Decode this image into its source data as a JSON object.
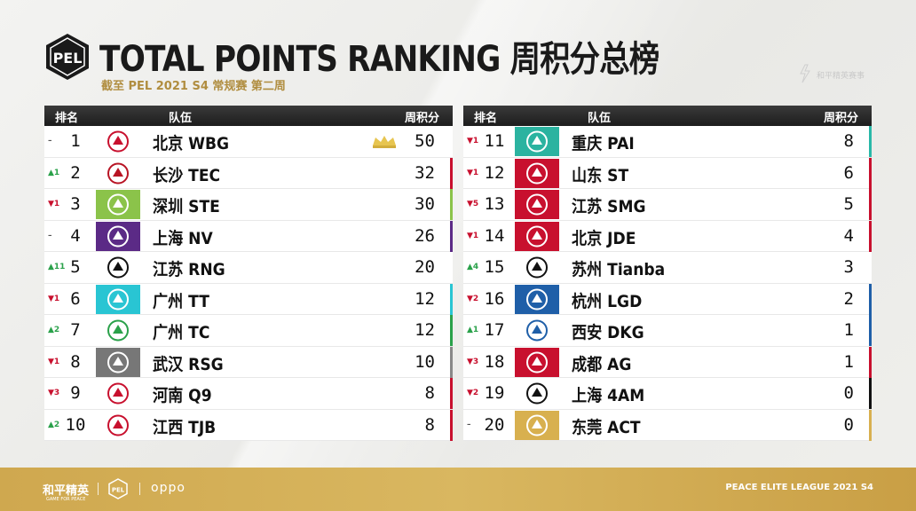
{
  "header": {
    "title": "TOTAL POINTS RANKING 周积分总榜",
    "subtitle": "截至 PEL 2021 S4 常规赛 第二周",
    "logo_text": "PEL"
  },
  "watermark": "和平精英赛事",
  "columns": {
    "rank": "排名",
    "team": "队伍",
    "points": "周积分"
  },
  "left_rows": [
    {
      "change": "–",
      "dir": "same",
      "rank": "1",
      "team": "北京 WBG",
      "points": "50",
      "stripe": "#ffffff",
      "logo_bg": "#ffffff",
      "logo_fg": "#c8102e",
      "icon": "weibo-logo-icon",
      "crown": true
    },
    {
      "change": "▲1",
      "dir": "up",
      "rank": "2",
      "team": "长沙 TEC",
      "points": "32",
      "stripe": "#c8102e",
      "logo_bg": "#ffffff",
      "logo_fg": "#b81424",
      "icon": "tec-logo-icon"
    },
    {
      "change": "▼1",
      "dir": "down",
      "rank": "3",
      "team": "深圳 STE",
      "points": "30",
      "stripe": "#8bc34a",
      "logo_bg": "#8bc34a",
      "logo_fg": "#ffffff",
      "icon": "ste-logo-icon"
    },
    {
      "change": "–",
      "dir": "same",
      "rank": "4",
      "team": "上海 NV",
      "points": "26",
      "stripe": "#5b2a86",
      "logo_bg": "#5b2a86",
      "logo_fg": "#ffffff",
      "icon": "nv-logo-icon"
    },
    {
      "change": "▲11",
      "dir": "up",
      "rank": "5",
      "team": "江苏 RNG",
      "points": "20",
      "stripe": "#ffffff",
      "logo_bg": "#ffffff",
      "logo_fg": "#111111",
      "icon": "rng-logo-icon"
    },
    {
      "change": "▼1",
      "dir": "down",
      "rank": "6",
      "team": "广州 TT",
      "points": "12",
      "stripe": "#29c5d3",
      "logo_bg": "#29c5d3",
      "logo_fg": "#ffffff",
      "icon": "tt-logo-icon"
    },
    {
      "change": "▲2",
      "dir": "up",
      "rank": "7",
      "team": "广州 TC",
      "points": "12",
      "stripe": "#2aa14a",
      "logo_bg": "#ffffff",
      "logo_fg": "#2aa14a",
      "icon": "tc-logo-icon"
    },
    {
      "change": "▼1",
      "dir": "down",
      "rank": "8",
      "team": "武汉 RSG",
      "points": "10",
      "stripe": "#888888",
      "logo_bg": "#777777",
      "logo_fg": "#ffffff",
      "icon": "rsg-logo-icon"
    },
    {
      "change": "▼3",
      "dir": "down",
      "rank": "9",
      "team": "河南 Q9",
      "points": "8",
      "stripe": "#c8102e",
      "logo_bg": "#ffffff",
      "logo_fg": "#c8102e",
      "icon": "q9-logo-icon"
    },
    {
      "change": "▲2",
      "dir": "up",
      "rank": "10",
      "team": "江西 TJB",
      "points": "8",
      "stripe": "#c8102e",
      "logo_bg": "#ffffff",
      "logo_fg": "#c8102e",
      "icon": "tjb-logo-icon"
    }
  ],
  "right_rows": [
    {
      "change": "▼1",
      "dir": "down",
      "rank": "11",
      "team": "重庆 PAI",
      "points": "8",
      "stripe": "#29b8a8",
      "logo_bg": "#2bb3a0",
      "logo_fg": "#ffffff",
      "icon": "pai-logo-icon"
    },
    {
      "change": "▼1",
      "dir": "down",
      "rank": "12",
      "team": "山东 ST",
      "points": "6",
      "stripe": "#c8102e",
      "logo_bg": "#c8102e",
      "logo_fg": "#ffffff",
      "icon": "st-logo-icon"
    },
    {
      "change": "▼5",
      "dir": "down",
      "rank": "13",
      "team": "江苏 SMG",
      "points": "5",
      "stripe": "#c8102e",
      "logo_bg": "#c8102e",
      "logo_fg": "#ffffff",
      "icon": "smg-logo-icon"
    },
    {
      "change": "▼1",
      "dir": "down",
      "rank": "14",
      "team": "北京 JDE",
      "points": "4",
      "stripe": "#c8102e",
      "logo_bg": "#c8102e",
      "logo_fg": "#ffffff",
      "icon": "jde-logo-icon"
    },
    {
      "change": "▲4",
      "dir": "up",
      "rank": "15",
      "team": "苏州 Tianba",
      "points": "3",
      "stripe": "#ffffff",
      "logo_bg": "#ffffff",
      "logo_fg": "#111111",
      "icon": "tianba-logo-icon"
    },
    {
      "change": "▼2",
      "dir": "down",
      "rank": "16",
      "team": "杭州 LGD",
      "points": "2",
      "stripe": "#1f5fa8",
      "logo_bg": "#1f5fa8",
      "logo_fg": "#ffffff",
      "icon": "lgd-logo-icon"
    },
    {
      "change": "▲1",
      "dir": "up",
      "rank": "17",
      "team": "西安 DKG",
      "points": "1",
      "stripe": "#1f5fa8",
      "logo_bg": "#ffffff",
      "logo_fg": "#1f5fa8",
      "icon": "dkg-logo-icon"
    },
    {
      "change": "▼3",
      "dir": "down",
      "rank": "18",
      "team": "成都 AG",
      "points": "1",
      "stripe": "#c8102e",
      "logo_bg": "#c8102e",
      "logo_fg": "#ffffff",
      "icon": "ag-logo-icon"
    },
    {
      "change": "▼2",
      "dir": "down",
      "rank": "19",
      "team": "上海 4AM",
      "points": "0",
      "stripe": "#111111",
      "logo_bg": "#ffffff",
      "logo_fg": "#111111",
      "icon": "4am-logo-icon"
    },
    {
      "change": "–",
      "dir": "same",
      "rank": "20",
      "team": "东莞 ACT",
      "points": "0",
      "stripe": "#d8b04f",
      "logo_bg": "#d8b04f",
      "logo_fg": "#ffffff",
      "icon": "act-logo-icon"
    }
  ],
  "footer": {
    "brand": "和平精英",
    "brand_sub": "GAME FOR PEACE",
    "sponsor": "oppo",
    "league": "PEACE ELITE LEAGUE 2021 S4"
  },
  "colors": {
    "gold": "#cfa84f",
    "up": "#2aa14a",
    "down": "#c8102e"
  }
}
